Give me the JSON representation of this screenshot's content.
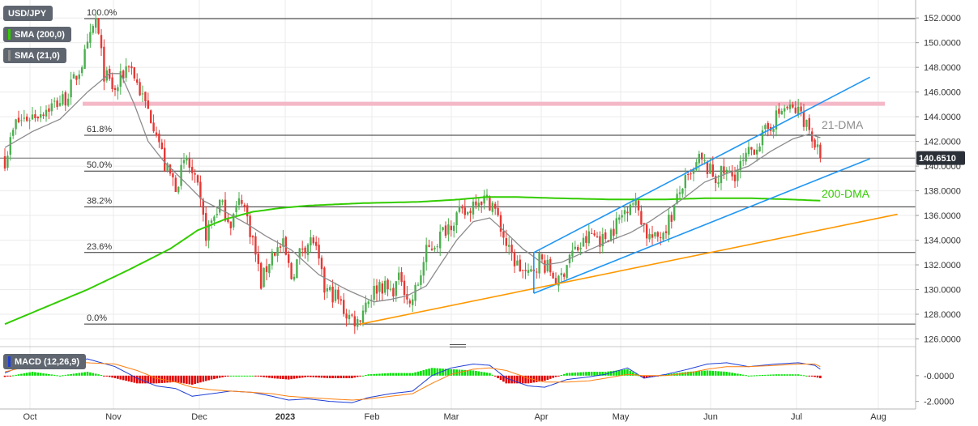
{
  "colors": {
    "background": "#ffffff",
    "grid": "#ebebeb",
    "up_candle": "#4caf50",
    "down_candle": "#e53935",
    "sma21": "#8c8c8c",
    "sma200": "#33cc00",
    "fib_line": "#2f2f2f",
    "resistance_band": "#f4b8c6",
    "channel": "#2196f3",
    "support": "#ff9800",
    "macd_line": "#1f3fd6",
    "signal_line": "#ff7f0e",
    "hist_pos": "#00e000",
    "hist_neg": "#e00000",
    "price_badge": "#2b3038"
  },
  "indicators": {
    "symbol": "USD/JPY",
    "sma200_label": "SMA (200,0)",
    "sma21_label": "SMA (21,0)",
    "macd_label": "MACD (12,26,9)"
  },
  "fib_levels": [
    {
      "label": "100.0%",
      "value": 151.95
    },
    {
      "label": "61.8%",
      "value": 142.5
    },
    {
      "label": "50.0%",
      "value": 139.6
    },
    {
      "label": "38.2%",
      "value": 136.7
    },
    {
      "label": "23.6%",
      "value": 133.0
    },
    {
      "label": "0.0%",
      "value": 127.2
    }
  ],
  "annotations": {
    "dma21": "21-DMA",
    "dma200": "200-DMA",
    "current_price": "140.6510"
  },
  "chart_data": {
    "type": "candlestick",
    "x_months": [
      "Oct",
      "Nov",
      "Dec",
      "2023",
      "Feb",
      "Mar",
      "Apr",
      "May",
      "Jun",
      "Jul",
      "Aug"
    ],
    "y_ticks": [
      "126.0000",
      "128.0000",
      "130.0000",
      "132.0000",
      "134.0000",
      "136.0000",
      "138.0000",
      "140.0000",
      "142.0000",
      "144.0000",
      "146.0000",
      "148.0000",
      "150.0000",
      "152.0000"
    ],
    "ylim": [
      125.9,
      152.8
    ],
    "macd_ticks": [
      "-0.0000",
      "-2.0000"
    ],
    "macd_ylim": [
      -2.4,
      2.0
    ],
    "current_price": 140.651,
    "horizontal_resistance": 145.05,
    "waypoints": [
      [
        0,
        140.5
      ],
      [
        4,
        143.5
      ],
      [
        12,
        144.3
      ],
      [
        22,
        145.5
      ],
      [
        27,
        147.8
      ],
      [
        30,
        149.5
      ],
      [
        33,
        151.9
      ],
      [
        36,
        147.5
      ],
      [
        40,
        146.0
      ],
      [
        45,
        148.5
      ],
      [
        50,
        145.5
      ],
      [
        55,
        143.0
      ],
      [
        58,
        140.0
      ],
      [
        62,
        138.5
      ],
      [
        66,
        140.5
      ],
      [
        70,
        138.0
      ],
      [
        73,
        134.5
      ],
      [
        78,
        137.0
      ],
      [
        82,
        135.5
      ],
      [
        86,
        137.5
      ],
      [
        90,
        134.0
      ],
      [
        93,
        130.5
      ],
      [
        97,
        133.0
      ],
      [
        101,
        133.5
      ],
      [
        104,
        131.0
      ],
      [
        108,
        133.5
      ],
      [
        112,
        134.0
      ],
      [
        116,
        130.0
      ],
      [
        120,
        129.5
      ],
      [
        124,
        128.0
      ],
      [
        128,
        127.4
      ],
      [
        131,
        129.0
      ],
      [
        136,
        130.5
      ],
      [
        140,
        129.8
      ],
      [
        144,
        131.0
      ],
      [
        147,
        128.7
      ],
      [
        150,
        130.5
      ],
      [
        153,
        133.0
      ],
      [
        157,
        134.0
      ],
      [
        160,
        135.0
      ],
      [
        164,
        136.0
      ],
      [
        168,
        136.2
      ],
      [
        171,
        137.5
      ],
      [
        174,
        137.3
      ],
      [
        177,
        137.0
      ],
      [
        180,
        135.0
      ],
      [
        183,
        133.0
      ],
      [
        186,
        132.0
      ],
      [
        190,
        131.0
      ],
      [
        194,
        132.5
      ],
      [
        198,
        131.5
      ],
      [
        201,
        130.5
      ],
      [
        205,
        132.8
      ],
      [
        209,
        133.5
      ],
      [
        213,
        134.5
      ],
      [
        217,
        134.0
      ],
      [
        221,
        135.0
      ],
      [
        224,
        136.0
      ],
      [
        227,
        137.3
      ],
      [
        230,
        136.5
      ],
      [
        233,
        134.5
      ],
      [
        236,
        134.0
      ],
      [
        239,
        134.8
      ],
      [
        242,
        136.0
      ],
      [
        246,
        138.5
      ],
      [
        249,
        139.0
      ],
      [
        252,
        140.5
      ],
      [
        255,
        139.8
      ],
      [
        258,
        139.0
      ],
      [
        261,
        139.5
      ],
      [
        264,
        139.2
      ],
      [
        268,
        140.2
      ],
      [
        271,
        141.3
      ],
      [
        274,
        142.0
      ],
      [
        277,
        143.0
      ],
      [
        280,
        144.0
      ],
      [
        283,
        144.7
      ],
      [
        286,
        144.5
      ],
      [
        289,
        144.3
      ],
      [
        292,
        143.0
      ],
      [
        294,
        141.8
      ],
      [
        296,
        140.65
      ]
    ],
    "sma21_waypoints": [
      [
        0,
        141.5
      ],
      [
        10,
        142.8
      ],
      [
        20,
        143.8
      ],
      [
        30,
        146.0
      ],
      [
        38,
        147.5
      ],
      [
        42,
        147.5
      ],
      [
        47,
        145.0
      ],
      [
        52,
        142.0
      ],
      [
        58,
        140.3
      ],
      [
        64,
        139.0
      ],
      [
        72,
        137.2
      ],
      [
        80,
        136.3
      ],
      [
        88,
        135.3
      ],
      [
        95,
        134.3
      ],
      [
        104,
        133.2
      ],
      [
        114,
        131.2
      ],
      [
        124,
        130.0
      ],
      [
        134,
        129.0
      ],
      [
        140,
        129.2
      ],
      [
        146,
        129.5
      ],
      [
        153,
        130.3
      ],
      [
        158,
        132.0
      ],
      [
        164,
        134.0
      ],
      [
        170,
        135.5
      ],
      [
        176,
        135.8
      ],
      [
        181,
        134.8
      ],
      [
        188,
        133.3
      ],
      [
        196,
        132.0
      ],
      [
        202,
        132.2
      ],
      [
        210,
        133.0
      ],
      [
        220,
        134.0
      ],
      [
        227,
        134.6
      ],
      [
        234,
        135.5
      ],
      [
        240,
        136.4
      ],
      [
        247,
        137.5
      ],
      [
        254,
        138.7
      ],
      [
        262,
        139.4
      ],
      [
        270,
        140.0
      ],
      [
        278,
        141.2
      ],
      [
        286,
        142.2
      ],
      [
        292,
        142.6
      ],
      [
        296,
        142.3
      ]
    ],
    "sma200_waypoints": [
      [
        0,
        127.2
      ],
      [
        15,
        128.6
      ],
      [
        30,
        130.0
      ],
      [
        45,
        131.6
      ],
      [
        60,
        133.3
      ],
      [
        70,
        134.8
      ],
      [
        80,
        135.7
      ],
      [
        90,
        136.3
      ],
      [
        100,
        136.6
      ],
      [
        110,
        136.8
      ],
      [
        130,
        137.0
      ],
      [
        150,
        137.1
      ],
      [
        165,
        137.3
      ],
      [
        175,
        137.5
      ],
      [
        185,
        137.5
      ],
      [
        200,
        137.4
      ],
      [
        220,
        137.3
      ],
      [
        240,
        137.3
      ],
      [
        255,
        137.4
      ],
      [
        270,
        137.4
      ],
      [
        285,
        137.3
      ],
      [
        296,
        137.2
      ]
    ],
    "trend_lines": [
      {
        "name": "channel-upper",
        "from": [
          192,
          133.0
        ],
        "to": [
          314,
          147.2
        ]
      },
      {
        "name": "channel-lower",
        "from": [
          192,
          129.7
        ],
        "to": [
          314,
          140.6
        ]
      },
      {
        "name": "support-line",
        "from": [
          129,
          127.2
        ],
        "to": [
          324,
          136.1
        ]
      }
    ],
    "macd": [
      [
        0,
        0.2
      ],
      [
        10,
        1.1
      ],
      [
        20,
        1.0
      ],
      [
        30,
        1.3
      ],
      [
        40,
        0.7
      ],
      [
        48,
        -0.2
      ],
      [
        55,
        -0.8
      ],
      [
        62,
        -1.0
      ],
      [
        68,
        -1.6
      ],
      [
        75,
        -1.4
      ],
      [
        82,
        -1.2
      ],
      [
        90,
        -1.3
      ],
      [
        97,
        -1.6
      ],
      [
        103,
        -1.9
      ],
      [
        110,
        -1.8
      ],
      [
        118,
        -2.0
      ],
      [
        126,
        -2.1
      ],
      [
        132,
        -1.7
      ],
      [
        140,
        -1.4
      ],
      [
        148,
        -1.2
      ],
      [
        155,
        0.0
      ],
      [
        162,
        0.6
      ],
      [
        170,
        0.9
      ],
      [
        176,
        0.8
      ],
      [
        182,
        -0.2
      ],
      [
        190,
        -0.8
      ],
      [
        196,
        -0.9
      ],
      [
        204,
        -0.3
      ],
      [
        212,
        -0.1
      ],
      [
        218,
        0.1
      ],
      [
        226,
        0.6
      ],
      [
        232,
        -0.2
      ],
      [
        240,
        0.1
      ],
      [
        248,
        0.5
      ],
      [
        255,
        0.9
      ],
      [
        262,
        1.0
      ],
      [
        270,
        0.7
      ],
      [
        280,
        0.9
      ],
      [
        288,
        1.0
      ],
      [
        294,
        0.8
      ],
      [
        296,
        0.5
      ]
    ],
    "signal": [
      [
        0,
        0.3
      ],
      [
        10,
        0.8
      ],
      [
        20,
        1.0
      ],
      [
        30,
        1.0
      ],
      [
        40,
        0.9
      ],
      [
        48,
        0.4
      ],
      [
        55,
        -0.2
      ],
      [
        62,
        -0.5
      ],
      [
        68,
        -0.9
      ],
      [
        75,
        -1.1
      ],
      [
        82,
        -1.2
      ],
      [
        90,
        -1.3
      ],
      [
        97,
        -1.4
      ],
      [
        103,
        -1.6
      ],
      [
        110,
        -1.7
      ],
      [
        118,
        -1.8
      ],
      [
        126,
        -1.9
      ],
      [
        132,
        -1.8
      ],
      [
        140,
        -1.6
      ],
      [
        148,
        -1.4
      ],
      [
        155,
        -0.6
      ],
      [
        162,
        0.1
      ],
      [
        170,
        0.5
      ],
      [
        176,
        0.6
      ],
      [
        182,
        0.4
      ],
      [
        190,
        -0.2
      ],
      [
        196,
        -0.5
      ],
      [
        204,
        -0.5
      ],
      [
        212,
        -0.4
      ],
      [
        218,
        -0.2
      ],
      [
        226,
        0.1
      ],
      [
        232,
        0.0
      ],
      [
        240,
        0.0
      ],
      [
        248,
        0.2
      ],
      [
        255,
        0.5
      ],
      [
        262,
        0.7
      ],
      [
        270,
        0.7
      ],
      [
        280,
        0.8
      ],
      [
        288,
        0.9
      ],
      [
        294,
        0.9
      ],
      [
        296,
        0.7
      ]
    ]
  }
}
